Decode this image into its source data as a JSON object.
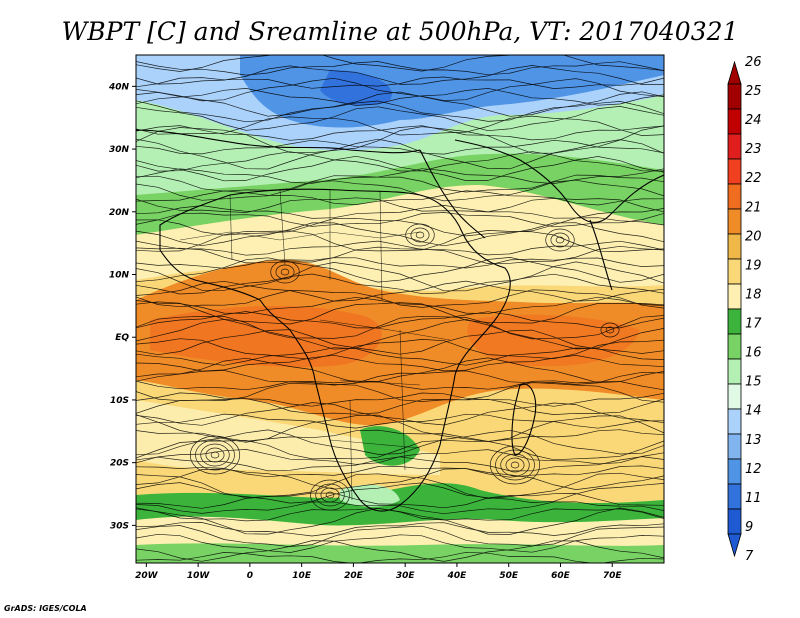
{
  "title": "WBPT [C] and Sreamline at 500hPa, VT: 2017040321",
  "credit": "GrADS: IGES/COLA",
  "map": {
    "lon_range": [
      -22,
      80
    ],
    "lat_range": [
      -36,
      45
    ],
    "lon_ticks": [
      {
        "value": -20,
        "label": "20W"
      },
      {
        "value": -10,
        "label": "10W"
      },
      {
        "value": 0,
        "label": "0"
      },
      {
        "value": 10,
        "label": "10E"
      },
      {
        "value": 20,
        "label": "20E"
      },
      {
        "value": 30,
        "label": "30E"
      },
      {
        "value": 40,
        "label": "40E"
      },
      {
        "value": 50,
        "label": "50E"
      },
      {
        "value": 60,
        "label": "60E"
      },
      {
        "value": 70,
        "label": "70E"
      }
    ],
    "lat_ticks": [
      {
        "value": 40,
        "label": "40N"
      },
      {
        "value": 30,
        "label": "30N"
      },
      {
        "value": 20,
        "label": "20N"
      },
      {
        "value": 10,
        "label": "10N"
      },
      {
        "value": 0,
        "label": "EQ"
      },
      {
        "value": -10,
        "label": "10S"
      },
      {
        "value": -20,
        "label": "20S"
      },
      {
        "value": -30,
        "label": "30S"
      }
    ]
  },
  "colorbar": {
    "labels": [
      "26",
      "25",
      "24",
      "23",
      "22",
      "21",
      "20",
      "19",
      "18",
      "17",
      "16",
      "15",
      "14",
      "13",
      "12",
      "11",
      "9",
      "7"
    ],
    "colors": [
      "#a00000",
      "#c00000",
      "#e01e1e",
      "#f04020",
      "#f06c1e",
      "#f08c28",
      "#f0b848",
      "#fad878",
      "#fdf0b2",
      "#3cb43c",
      "#78d264",
      "#b4f0b4",
      "#e0fae6",
      "#aad2fa",
      "#82b4f0",
      "#5094e6",
      "#3272dc",
      "#1e5ad2"
    ]
  }
}
